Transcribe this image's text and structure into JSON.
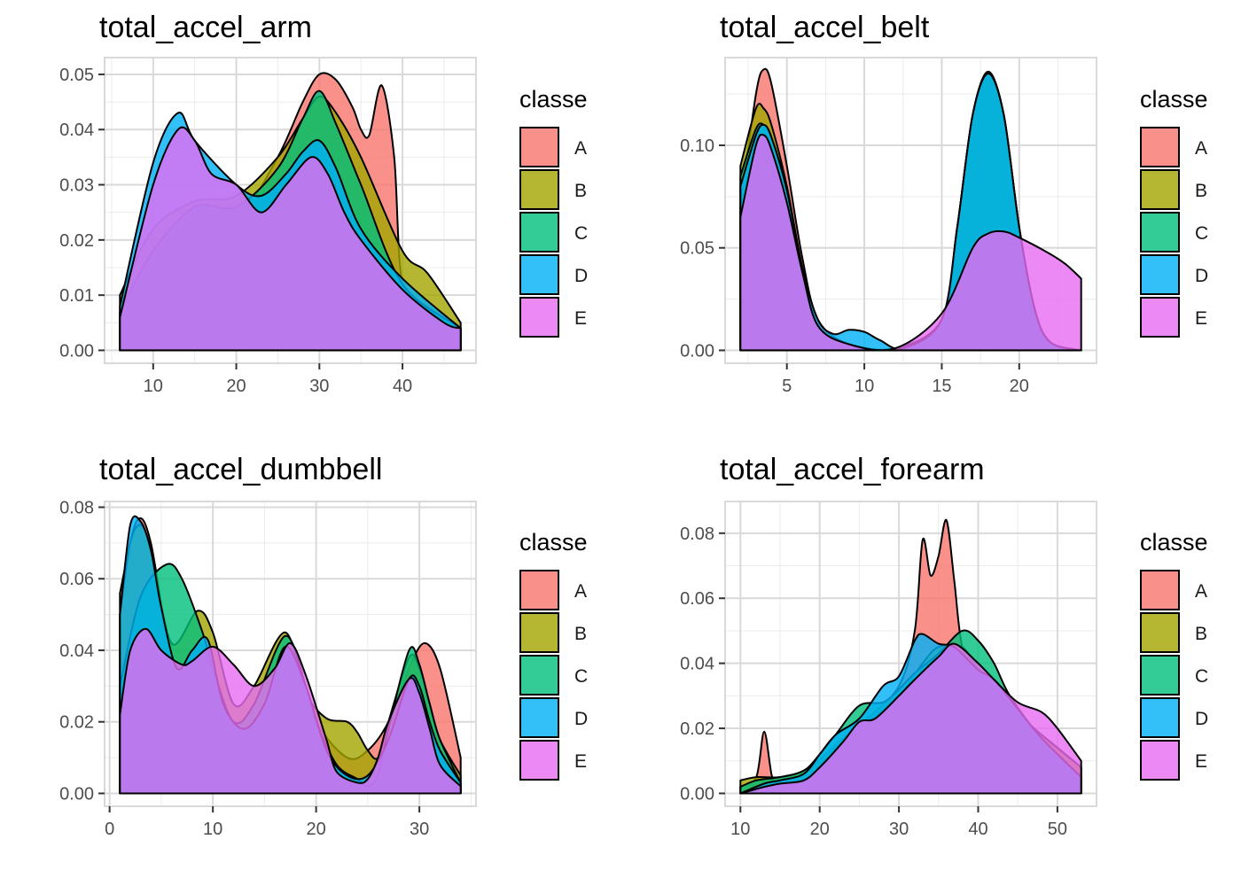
{
  "legend": {
    "title": "classe",
    "entries": [
      {
        "label": "A",
        "color": "#F8766D"
      },
      {
        "label": "B",
        "color": "#A3A500"
      },
      {
        "label": "C",
        "color": "#00BF7D"
      },
      {
        "label": "D",
        "color": "#00B0F6"
      },
      {
        "label": "E",
        "color": "#E76BF3"
      }
    ]
  },
  "chart_data": [
    {
      "type": "area",
      "title": "total_accel_arm",
      "xlim": [
        6,
        47
      ],
      "ylim": [
        0,
        0.052
      ],
      "xticks": [
        10,
        20,
        30,
        40
      ],
      "yticks": [
        0,
        0.01,
        0.02,
        0.03,
        0.04,
        0.05
      ],
      "yticklabels": [
        "0.00",
        "0.01",
        "0.02",
        "0.03",
        "0.04",
        "0.05"
      ],
      "grid": true,
      "legend_position": "right",
      "series": [
        {
          "name": "A",
          "x": [
            6,
            10,
            15,
            20,
            25,
            28,
            30,
            32,
            34,
            35,
            36,
            37.5,
            39,
            40,
            43,
            47
          ],
          "y": [
            0.006,
            0.01,
            0.019,
            0.023,
            0.035,
            0.045,
            0.05,
            0.049,
            0.044,
            0.04,
            0.039,
            0.048,
            0.035,
            0.012,
            0.008,
            0.004
          ]
        },
        {
          "name": "B",
          "x": [
            6,
            10,
            15,
            20,
            25,
            28,
            30,
            32,
            35,
            40,
            43,
            47
          ],
          "y": [
            0.01,
            0.022,
            0.027,
            0.028,
            0.035,
            0.042,
            0.046,
            0.043,
            0.035,
            0.018,
            0.014,
            0.005
          ]
        },
        {
          "name": "C",
          "x": [
            6,
            10,
            15,
            20,
            25,
            28,
            30,
            32,
            35,
            40,
            47
          ],
          "y": [
            0.007,
            0.018,
            0.026,
            0.026,
            0.033,
            0.042,
            0.047,
            0.041,
            0.03,
            0.012,
            0.004
          ]
        },
        {
          "name": "D",
          "x": [
            6,
            10,
            13,
            15,
            20,
            23,
            26,
            28,
            30,
            32,
            35,
            40,
            47
          ],
          "y": [
            0.008,
            0.034,
            0.043,
            0.038,
            0.03,
            0.028,
            0.032,
            0.036,
            0.038,
            0.033,
            0.022,
            0.013,
            0.004
          ]
        },
        {
          "name": "E",
          "x": [
            6,
            10,
            13,
            15,
            17,
            20,
            23,
            26,
            29,
            31,
            33,
            35,
            40,
            45,
            47
          ],
          "y": [
            0.006,
            0.03,
            0.04,
            0.038,
            0.032,
            0.03,
            0.025,
            0.03,
            0.035,
            0.032,
            0.025,
            0.02,
            0.011,
            0.005,
            0.004
          ]
        }
      ]
    },
    {
      "type": "area",
      "title": "total_accel_belt",
      "xlim": [
        2,
        24
      ],
      "ylim": [
        0,
        0.14
      ],
      "xticks": [
        5,
        10,
        15,
        20,
        25
      ],
      "yticks": [
        0,
        0.05,
        0.1
      ],
      "yticklabels": [
        "0.00",
        "0.05",
        "0.10"
      ],
      "grid": true,
      "legend_position": "right",
      "series": [
        {
          "name": "A",
          "x": [
            2,
            3,
            3.5,
            4,
            5,
            6,
            7,
            9,
            12,
            15,
            16,
            17,
            18,
            19,
            20,
            21,
            22,
            24
          ],
          "y": [
            0.07,
            0.125,
            0.137,
            0.13,
            0.09,
            0.045,
            0.015,
            0.003,
            0.001,
            0.015,
            0.06,
            0.115,
            0.135,
            0.115,
            0.06,
            0.02,
            0.004,
            0.0
          ]
        },
        {
          "name": "B",
          "x": [
            2,
            3,
            3.5,
            4,
            5,
            6,
            7,
            9,
            12,
            15,
            16,
            17,
            18,
            19,
            20,
            21,
            22,
            24
          ],
          "y": [
            0.09,
            0.118,
            0.118,
            0.11,
            0.08,
            0.04,
            0.012,
            0.003,
            0.001,
            0.015,
            0.06,
            0.115,
            0.136,
            0.115,
            0.06,
            0.02,
            0.004,
            0.0
          ]
        },
        {
          "name": "C",
          "x": [
            2,
            3,
            3.5,
            4,
            5,
            6,
            7,
            9,
            12,
            15,
            16,
            17,
            18,
            19,
            20,
            21,
            22,
            24
          ],
          "y": [
            0.085,
            0.108,
            0.11,
            0.104,
            0.078,
            0.04,
            0.012,
            0.003,
            0.001,
            0.015,
            0.06,
            0.115,
            0.135,
            0.115,
            0.06,
            0.02,
            0.004,
            0.0
          ]
        },
        {
          "name": "D",
          "x": [
            2,
            3,
            3.5,
            4,
            5,
            6,
            7,
            8,
            9,
            10,
            11,
            12.5,
            15,
            16,
            17,
            18,
            19,
            20,
            21,
            22,
            24
          ],
          "y": [
            0.08,
            0.105,
            0.11,
            0.104,
            0.078,
            0.04,
            0.015,
            0.008,
            0.01,
            0.009,
            0.005,
            0.001,
            0.015,
            0.06,
            0.115,
            0.135,
            0.115,
            0.06,
            0.02,
            0.004,
            0.0
          ]
        },
        {
          "name": "E",
          "x": [
            2,
            3,
            3.5,
            4,
            5,
            6,
            7,
            9,
            12,
            15,
            17,
            18,
            19,
            20,
            22,
            23,
            24
          ],
          "y": [
            0.065,
            0.1,
            0.105,
            0.098,
            0.072,
            0.038,
            0.012,
            0.003,
            0.001,
            0.018,
            0.05,
            0.057,
            0.058,
            0.055,
            0.047,
            0.042,
            0.035
          ]
        }
      ]
    },
    {
      "type": "area",
      "title": "total_accel_dumbbell",
      "xlim": [
        1,
        34
      ],
      "ylim": [
        0,
        0.08
      ],
      "xticks": [
        0,
        10,
        20,
        30
      ],
      "yticks": [
        0,
        0.02,
        0.04,
        0.06,
        0.08
      ],
      "yticklabels": [
        "0.00",
        "0.02",
        "0.04",
        "0.06",
        "0.08"
      ],
      "grid": true,
      "legend_position": "right",
      "series": [
        {
          "name": "A",
          "x": [
            1,
            2.6,
            4,
            6,
            8,
            10,
            13,
            15,
            17,
            20,
            23,
            25,
            27,
            29,
            30.5,
            32,
            34
          ],
          "y": [
            0.056,
            0.076,
            0.07,
            0.035,
            0.015,
            0.01,
            0.01,
            0.02,
            0.04,
            0.02,
            0.01,
            0.012,
            0.02,
            0.035,
            0.042,
            0.035,
            0.01
          ]
        },
        {
          "name": "B",
          "x": [
            1,
            2,
            3,
            4,
            6,
            8.5,
            10,
            12,
            14,
            17,
            19,
            21,
            23,
            24,
            25,
            26,
            27,
            29,
            30,
            31,
            32,
            34
          ],
          "y": [
            0.05,
            0.07,
            0.075,
            0.068,
            0.042,
            0.051,
            0.045,
            0.025,
            0.03,
            0.045,
            0.028,
            0.021,
            0.02,
            0.017,
            0.012,
            0.01,
            0.02,
            0.038,
            0.035,
            0.025,
            0.015,
            0.005
          ]
        },
        {
          "name": "C",
          "x": [
            1,
            3,
            5.5,
            7,
            9,
            10,
            12,
            14,
            17,
            19,
            20,
            22,
            24,
            25,
            26,
            27,
            29,
            30,
            31,
            32,
            34
          ],
          "y": [
            0.03,
            0.055,
            0.064,
            0.06,
            0.045,
            0.035,
            0.02,
            0.025,
            0.044,
            0.03,
            0.02,
            0.008,
            0.004,
            0.002,
            0.005,
            0.018,
            0.04,
            0.036,
            0.025,
            0.015,
            0.003
          ]
        },
        {
          "name": "D",
          "x": [
            1,
            2,
            3,
            4,
            5,
            6.5,
            8,
            9.5,
            11,
            13,
            15,
            17,
            19,
            21,
            23,
            25,
            27,
            29,
            30,
            31,
            32,
            34
          ],
          "y": [
            0.05,
            0.075,
            0.076,
            0.068,
            0.052,
            0.035,
            0.04,
            0.043,
            0.025,
            0.018,
            0.025,
            0.041,
            0.03,
            0.012,
            0.005,
            0.005,
            0.015,
            0.032,
            0.03,
            0.02,
            0.012,
            0.003
          ]
        },
        {
          "name": "E",
          "x": [
            1,
            2,
            3.5,
            5,
            7,
            8,
            10,
            12,
            14,
            16,
            17.5,
            19,
            21,
            22,
            24,
            25,
            26,
            27,
            29,
            30,
            31,
            32,
            34
          ],
          "y": [
            0.022,
            0.04,
            0.046,
            0.04,
            0.036,
            0.037,
            0.041,
            0.036,
            0.03,
            0.035,
            0.042,
            0.033,
            0.015,
            0.006,
            0.003,
            0.004,
            0.01,
            0.02,
            0.032,
            0.028,
            0.018,
            0.008,
            0.002
          ]
        }
      ]
    },
    {
      "type": "area",
      "title": "total_accel_forearm",
      "xlim": [
        10,
        53
      ],
      "ylim": [
        0,
        0.088
      ],
      "xticks": [
        10,
        20,
        30,
        40,
        50
      ],
      "yticks": [
        0,
        0.02,
        0.04,
        0.06,
        0.08
      ],
      "yticklabels": [
        "0.00",
        "0.02",
        "0.04",
        "0.06",
        "0.08"
      ],
      "grid": true,
      "legend_position": "right",
      "series": [
        {
          "name": "A",
          "x": [
            10,
            12,
            13,
            14,
            15,
            18,
            22,
            26,
            30,
            32,
            33,
            34,
            35,
            36,
            37,
            38,
            40,
            44,
            48,
            53
          ],
          "y": [
            0.002,
            0.005,
            0.019,
            0.005,
            0.004,
            0.006,
            0.015,
            0.023,
            0.033,
            0.05,
            0.078,
            0.067,
            0.073,
            0.084,
            0.065,
            0.045,
            0.035,
            0.025,
            0.018,
            0.008
          ]
        },
        {
          "name": "B",
          "x": [
            10,
            12,
            15,
            18,
            22,
            26,
            30,
            33,
            35,
            38,
            40,
            44,
            48,
            53
          ],
          "y": [
            0.004,
            0.005,
            0.005,
            0.007,
            0.014,
            0.022,
            0.03,
            0.04,
            0.045,
            0.045,
            0.038,
            0.027,
            0.018,
            0.008
          ]
        },
        {
          "name": "C",
          "x": [
            10,
            12,
            15,
            18,
            20,
            22,
            25,
            28,
            30,
            32,
            35,
            38,
            40,
            42,
            44,
            48,
            53
          ],
          "y": [
            0.002,
            0.004,
            0.005,
            0.007,
            0.012,
            0.018,
            0.027,
            0.028,
            0.032,
            0.037,
            0.043,
            0.05,
            0.047,
            0.04,
            0.03,
            0.017,
            0.005
          ]
        },
        {
          "name": "D",
          "x": [
            10,
            13,
            15,
            18,
            20,
            22,
            25,
            28,
            30,
            32,
            33,
            35,
            37,
            40,
            42,
            45,
            48,
            53
          ],
          "y": [
            0.0,
            0.003,
            0.004,
            0.006,
            0.012,
            0.018,
            0.023,
            0.033,
            0.036,
            0.047,
            0.049,
            0.046,
            0.045,
            0.038,
            0.035,
            0.026,
            0.017,
            0.005
          ]
        },
        {
          "name": "E",
          "x": [
            10,
            13,
            15,
            18,
            20,
            23,
            25,
            27,
            30,
            32,
            35,
            37,
            40,
            42,
            45,
            48,
            50,
            53
          ],
          "y": [
            0.0,
            0.002,
            0.003,
            0.004,
            0.008,
            0.016,
            0.022,
            0.023,
            0.03,
            0.035,
            0.042,
            0.046,
            0.04,
            0.035,
            0.028,
            0.025,
            0.02,
            0.01
          ]
        }
      ]
    }
  ]
}
